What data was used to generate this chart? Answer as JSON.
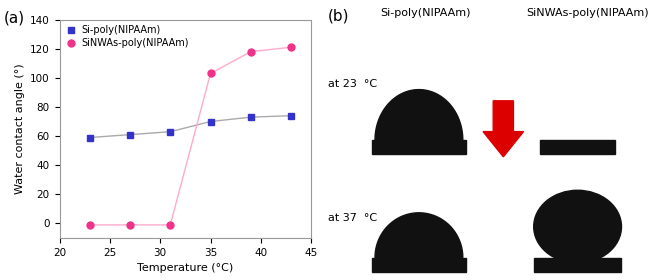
{
  "panel_a_label": "(a)",
  "panel_b_label": "(b)",
  "si_x": [
    23,
    27,
    31,
    35,
    39,
    43
  ],
  "si_y": [
    59,
    61,
    63,
    70,
    73,
    74
  ],
  "sinwas_x": [
    23,
    27,
    31,
    35,
    39,
    43
  ],
  "sinwas_y": [
    -1,
    -1,
    -1,
    103,
    118,
    121
  ],
  "si_color": "#3333cc",
  "sinwas_color": "#ee3388",
  "si_line_color": "#aaaaaa",
  "sinwas_line_color": "#ffaacc",
  "si_label": "Si-poly(NIPAAm)",
  "sinwas_label": "SiNWAs-poly(NIPAAm)",
  "xlabel": "Temperature (°C)",
  "ylabel": "Water contact angle (°)",
  "xlim": [
    20,
    45
  ],
  "ylim": [
    -10,
    140
  ],
  "yticks": [
    0,
    20,
    40,
    60,
    80,
    100,
    120,
    140
  ],
  "xticks": [
    20,
    25,
    30,
    35,
    40,
    45
  ],
  "b_title_si": "Si-poly(NIPAAm)",
  "b_title_sinwas": "SiNWAs-poly(NIPAAm)",
  "b_label_23": "at 23  °C",
  "b_label_37": "at 37  °C",
  "arrow_color": "#dd0000",
  "droplet_color": "#111111",
  "surface_color": "#111111",
  "bg_color": "#ffffff"
}
